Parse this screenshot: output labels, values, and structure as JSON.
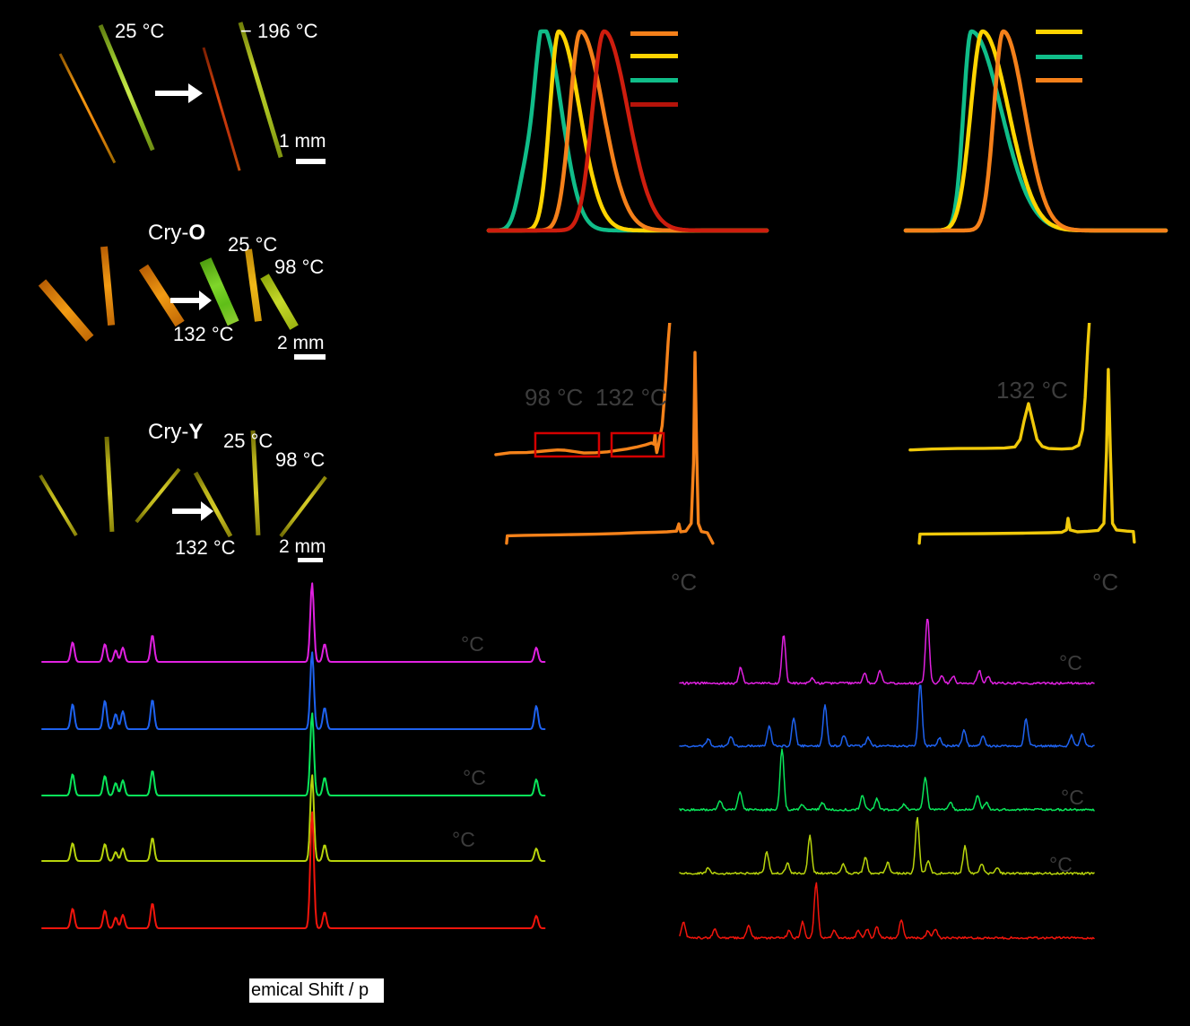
{
  "figure": {
    "background": "#000000",
    "text_color": "#ffffff",
    "muted_text_color": "#3d3d3d",
    "highlight_box_color": "#d40000"
  },
  "photos": {
    "panel_a": {
      "label_25": "25 °C",
      "label_minus196": "− 196 °C",
      "scalebar": "1 mm"
    },
    "panel_cry_o": {
      "name_prefix": "Cry-",
      "name_bold": "O",
      "label_25": "25 °C",
      "label_98": "98 °C",
      "label_132": "132 °C",
      "scalebar": "2 mm"
    },
    "panel_cry_y": {
      "name_prefix": "Cry-",
      "name_bold": "Y",
      "label_25": "25 °C",
      "label_98": "98 °C",
      "label_132": "132 °C",
      "scalebar": "2 mm"
    }
  },
  "dsc": {
    "left": {
      "label_98": "98 °C",
      "label_132": "132 °C",
      "axis_unit": "°C"
    },
    "right": {
      "label_132": "132 °C",
      "axis_unit": "°C"
    }
  },
  "nmr": {
    "unit_labels": [
      "°C",
      "°C",
      "°C"
    ],
    "axis_label_visible_part": "emical Shift / p"
  },
  "pxrd": {
    "unit_labels": [
      "°C",
      "°C",
      "°C"
    ]
  },
  "chart_data": [
    {
      "id": "emission-spectra-left",
      "type": "line",
      "note": "Normalized emission spectra; axis ticks and legend text are printed in black and invisible on the black background. Peak positions given as fraction of plot width.",
      "legend_colors": [
        "#F5801A",
        "#FFD400",
        "#10BD89",
        "#B5130A"
      ],
      "series": [
        {
          "name": "teal-curve",
          "color": "#10BD89",
          "peak_x": 0.197,
          "sigma_left": 0.03,
          "sigma_right": 0.065,
          "shoulder": {
            "x": 0.135,
            "amp": 0.28,
            "sigma": 0.03
          }
        },
        {
          "name": "yellow-curve",
          "color": "#FFD400",
          "peak_x": 0.252,
          "sigma_left": 0.032,
          "sigma_right": 0.075
        },
        {
          "name": "orange-curve",
          "color": "#F5801A",
          "peak_x": 0.33,
          "sigma_left": 0.038,
          "sigma_right": 0.082
        },
        {
          "name": "red-curve",
          "color": "#CE1D0E",
          "peak_x": 0.415,
          "sigma_left": 0.042,
          "sigma_right": 0.085
        }
      ]
    },
    {
      "id": "emission-spectra-right",
      "type": "line",
      "note": "Normalized emission spectra; axis and legend text invisible (black on black).",
      "legend_colors": [
        "#FFD400",
        "#10BD89",
        "#F5801A"
      ],
      "series": [
        {
          "name": "teal-curve",
          "color": "#10BD89",
          "peak_x": 0.252,
          "sigma_left": 0.03,
          "sigma_right": 0.115
        },
        {
          "name": "yellow-curve",
          "color": "#FFD400",
          "peak_x": 0.295,
          "sigma_left": 0.045,
          "sigma_right": 0.1
        },
        {
          "name": "orange-curve",
          "color": "#F5801A",
          "peak_x": 0.375,
          "sigma_left": 0.036,
          "sigma_right": 0.082
        }
      ]
    },
    {
      "id": "dsc-left-orange",
      "type": "line",
      "color": "#F5821A",
      "annotations": [
        "98 °C",
        "132 °C"
      ],
      "x_unit": "°C",
      "highlight_boxes": [
        {
          "x": 0.196,
          "y": 0.473,
          "w": 0.268,
          "h": 0.1
        },
        {
          "x": 0.517,
          "y": 0.473,
          "w": 0.219,
          "h": 0.1
        }
      ],
      "curves": [
        {
          "name": "magnified-heating-trace",
          "points": [
            [
              0.03,
              0.565
            ],
            [
              0.09,
              0.557
            ],
            [
              0.16,
              0.556
            ],
            [
              0.21,
              0.552
            ],
            [
              0.25,
              0.548
            ],
            [
              0.29,
              0.545
            ],
            [
              0.32,
              0.546
            ],
            [
              0.36,
              0.552
            ],
            [
              0.4,
              0.558
            ],
            [
              0.45,
              0.557
            ],
            [
              0.5,
              0.553
            ],
            [
              0.54,
              0.547
            ],
            [
              0.58,
              0.541
            ],
            [
              0.62,
              0.533
            ],
            [
              0.66,
              0.523
            ],
            [
              0.685,
              0.515
            ],
            [
              0.695,
              0.52
            ],
            [
              0.7,
              0.475
            ],
            [
              0.703,
              0.53
            ],
            [
              0.707,
              0.556
            ],
            [
              0.715,
              0.52
            ],
            [
              0.73,
              0.44
            ],
            [
              0.745,
              0.25
            ],
            [
              0.755,
              0.08
            ],
            [
              0.763,
              -0.02
            ]
          ]
        },
        {
          "name": "full-heating-trace",
          "points": [
            [
              0.075,
              0.945
            ],
            [
              0.078,
              0.913
            ],
            [
              0.15,
              0.911
            ],
            [
              0.3,
              0.909
            ],
            [
              0.45,
              0.906
            ],
            [
              0.55,
              0.903
            ],
            [
              0.62,
              0.9
            ],
            [
              0.7,
              0.898
            ],
            [
              0.75,
              0.896
            ],
            [
              0.79,
              0.893
            ],
            [
              0.8,
              0.862
            ],
            [
              0.808,
              0.896
            ],
            [
              0.83,
              0.893
            ],
            [
              0.852,
              0.86
            ],
            [
              0.862,
              0.6
            ],
            [
              0.868,
              0.127
            ],
            [
              0.875,
              0.55
            ],
            [
              0.882,
              0.86
            ],
            [
              0.895,
              0.895
            ],
            [
              0.92,
              0.9
            ],
            [
              0.943,
              0.945
            ]
          ]
        }
      ]
    },
    {
      "id": "dsc-right-yellow",
      "type": "line",
      "color": "#F0C90A",
      "annotations": [
        "132 °C"
      ],
      "x_unit": "°C",
      "highlight_boxes": [],
      "curves": [
        {
          "name": "magnified-heating-trace",
          "points": [
            [
              0.017,
              0.545
            ],
            [
              0.1,
              0.541
            ],
            [
              0.2,
              0.539
            ],
            [
              0.3,
              0.538
            ],
            [
              0.38,
              0.537
            ],
            [
              0.42,
              0.532
            ],
            [
              0.44,
              0.5
            ],
            [
              0.455,
              0.42
            ],
            [
              0.472,
              0.346
            ],
            [
              0.49,
              0.43
            ],
            [
              0.505,
              0.5
            ],
            [
              0.525,
              0.53
            ],
            [
              0.55,
              0.539
            ],
            [
              0.6,
              0.541
            ],
            [
              0.64,
              0.539
            ],
            [
              0.665,
              0.525
            ],
            [
              0.68,
              0.46
            ],
            [
              0.69,
              0.32
            ],
            [
              0.7,
              0.1
            ],
            [
              0.707,
              -0.02
            ]
          ]
        },
        {
          "name": "full-heating-trace",
          "points": [
            [
              0.052,
              0.945
            ],
            [
              0.055,
              0.906
            ],
            [
              0.15,
              0.905
            ],
            [
              0.3,
              0.904
            ],
            [
              0.45,
              0.902
            ],
            [
              0.55,
              0.9
            ],
            [
              0.6,
              0.898
            ],
            [
              0.618,
              0.888
            ],
            [
              0.624,
              0.838
            ],
            [
              0.632,
              0.888
            ],
            [
              0.66,
              0.896
            ],
            [
              0.7,
              0.894
            ],
            [
              0.74,
              0.89
            ],
            [
              0.762,
              0.86
            ],
            [
              0.772,
              0.55
            ],
            [
              0.779,
              0.2
            ],
            [
              0.787,
              0.55
            ],
            [
              0.795,
              0.86
            ],
            [
              0.81,
              0.888
            ],
            [
              0.85,
              0.893
            ],
            [
              0.875,
              0.895
            ],
            [
              0.879,
              0.94
            ]
          ]
        }
      ]
    },
    {
      "id": "vt-nmr-stack",
      "type": "line",
      "note": "Variable-temperature NMR stack; temperature values printed in black are invisible, only °C glyphs show. Peaks as [x_fraction, height_px].",
      "traces": [
        {
          "name": "trace-1",
          "color": "#E121E1",
          "peaks": [
            [
              0.0637,
              22
            ],
            [
              0.1274,
              20
            ],
            [
              0.1487,
              13
            ],
            [
              0.1628,
              16
            ],
            [
              0.2212,
              30
            ],
            [
              0.5363,
              88
            ],
            [
              0.5611,
              20
            ],
            [
              0.9788,
              16
            ]
          ]
        },
        {
          "name": "trace-2",
          "color": "#1E62F0",
          "peaks": [
            [
              0.0637,
              28
            ],
            [
              0.1274,
              32
            ],
            [
              0.1487,
              17
            ],
            [
              0.1628,
              20
            ],
            [
              0.2212,
              33
            ],
            [
              0.5363,
              86
            ],
            [
              0.5611,
              24
            ],
            [
              0.9788,
              26
            ]
          ]
        },
        {
          "name": "trace-3",
          "color": "#0AE65A",
          "peaks": [
            [
              0.0637,
              24
            ],
            [
              0.1274,
              22
            ],
            [
              0.1487,
              14
            ],
            [
              0.1628,
              17
            ],
            [
              0.2212,
              28
            ],
            [
              0.5363,
              92
            ],
            [
              0.5611,
              20
            ],
            [
              0.9788,
              18
            ]
          ]
        },
        {
          "name": "trace-4",
          "color": "#B8D40C",
          "peaks": [
            [
              0.0637,
              20
            ],
            [
              0.1274,
              19
            ],
            [
              0.1487,
              10
            ],
            [
              0.1628,
              14
            ],
            [
              0.2212,
              26
            ],
            [
              0.5363,
              96
            ],
            [
              0.5611,
              18
            ],
            [
              0.9788,
              14
            ]
          ]
        },
        {
          "name": "trace-5",
          "color": "#F2150C",
          "peaks": [
            [
              0.0637,
              22
            ],
            [
              0.1274,
              20
            ],
            [
              0.1487,
              12
            ],
            [
              0.1628,
              15
            ],
            [
              0.2212,
              28
            ],
            [
              0.5363,
              130
            ],
            [
              0.5611,
              18
            ],
            [
              0.9788,
              14
            ]
          ]
        }
      ]
    },
    {
      "id": "vt-pxrd-stack",
      "type": "line",
      "note": "Variable-temperature powder-pattern stack with noisy baselines; peaks as [x_fraction, height_px].",
      "traces": [
        {
          "name": "trace-1",
          "color": "#E121E1",
          "peaks": [
            [
              0.151,
              18
            ],
            [
              0.253,
              55
            ],
            [
              0.321,
              6
            ],
            [
              0.445,
              12
            ],
            [
              0.481,
              15
            ],
            [
              0.594,
              75
            ],
            [
              0.628,
              9
            ],
            [
              0.655,
              8
            ],
            [
              0.717,
              14
            ],
            [
              0.738,
              8
            ]
          ]
        },
        {
          "name": "trace-2",
          "color": "#1E62F0",
          "peaks": [
            [
              0.074,
              8
            ],
            [
              0.128,
              10
            ],
            [
              0.219,
              22
            ],
            [
              0.277,
              32
            ],
            [
              0.351,
              46
            ],
            [
              0.396,
              12
            ],
            [
              0.453,
              10
            ],
            [
              0.577,
              70
            ],
            [
              0.623,
              9
            ],
            [
              0.681,
              18
            ],
            [
              0.726,
              12
            ],
            [
              0.828,
              30
            ],
            [
              0.936,
              12
            ],
            [
              0.962,
              14
            ]
          ]
        },
        {
          "name": "trace-3",
          "color": "#0AE65A",
          "peaks": [
            [
              0.102,
              10
            ],
            [
              0.149,
              20
            ],
            [
              0.249,
              68
            ],
            [
              0.298,
              6
            ],
            [
              0.345,
              8
            ],
            [
              0.44,
              16
            ],
            [
              0.474,
              12
            ],
            [
              0.538,
              6
            ],
            [
              0.589,
              36
            ],
            [
              0.649,
              8
            ],
            [
              0.713,
              16
            ],
            [
              0.734,
              8
            ]
          ]
        },
        {
          "name": "trace-4",
          "color": "#B8D40C",
          "peaks": [
            [
              0.074,
              6
            ],
            [
              0.213,
              24
            ],
            [
              0.262,
              12
            ],
            [
              0.315,
              42
            ],
            [
              0.394,
              10
            ],
            [
              0.447,
              18
            ],
            [
              0.5,
              12
            ],
            [
              0.57,
              62
            ],
            [
              0.596,
              14
            ],
            [
              0.683,
              30
            ],
            [
              0.723,
              10
            ],
            [
              0.76,
              6
            ]
          ]
        },
        {
          "name": "trace-5",
          "color": "#F2150C",
          "peaks": [
            [
              0.015,
              18
            ],
            [
              0.089,
              10
            ],
            [
              0.17,
              14
            ],
            [
              0.266,
              8
            ],
            [
              0.298,
              18
            ],
            [
              0.33,
              62
            ],
            [
              0.372,
              8
            ],
            [
              0.43,
              8
            ],
            [
              0.451,
              10
            ],
            [
              0.474,
              12
            ],
            [
              0.532,
              20
            ],
            [
              0.596,
              8
            ],
            [
              0.613,
              10
            ]
          ]
        }
      ]
    }
  ]
}
